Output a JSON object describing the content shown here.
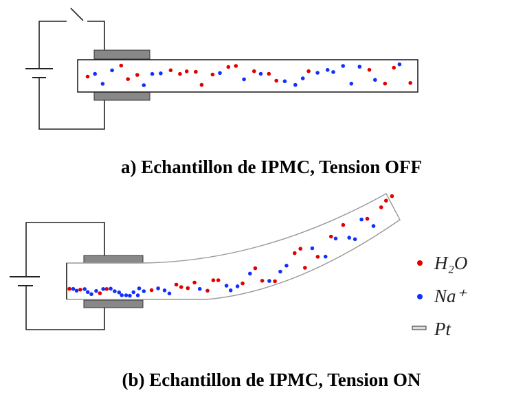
{
  "caption_a": "a)  Echantillon de IPMC, Tension OFF",
  "caption_b": "(b)  Echantillon de IPMC, Tension ON",
  "legend": [
    {
      "label": "H₂O"
    },
    {
      "label": "Na⁺"
    },
    {
      "label": "Pt"
    }
  ]
}
